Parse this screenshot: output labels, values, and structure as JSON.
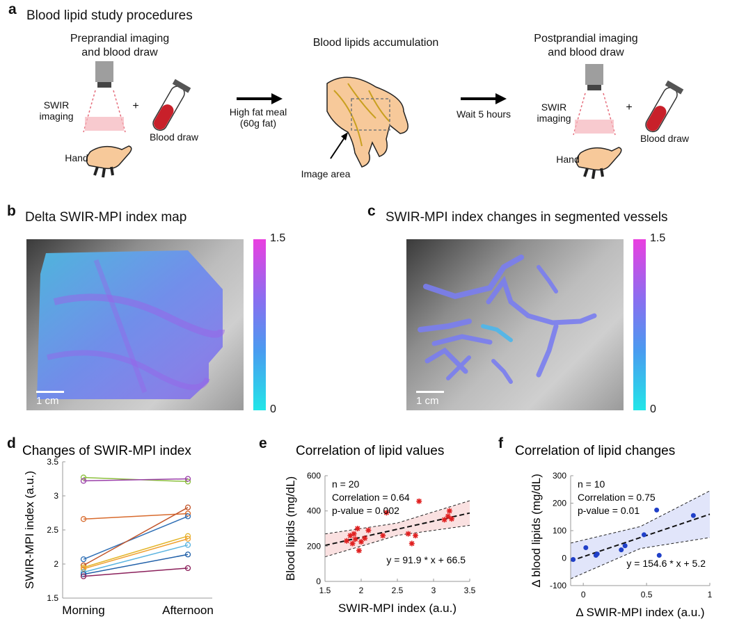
{
  "panel_a": {
    "label": "a",
    "title": "Blood lipid study procedures",
    "pre_title_line1": "Preprandial imaging",
    "pre_title_line2": "and blood draw",
    "swir_line1": "SWIR",
    "swir_line2": "imaging",
    "plus": "+",
    "blood_draw": "Blood draw",
    "hand": "Hand",
    "meal_line1": "High fat meal",
    "meal_line2": "(60g fat)",
    "accum_title": "Blood lipids accumulation",
    "image_area": "Image area",
    "wait": "Wait 5 hours",
    "post_title_line1": "Postprandial imaging",
    "post_title_line2": "and blood draw"
  },
  "panel_b": {
    "label": "b",
    "title": "Delta SWIR-MPI index map",
    "scale_bar": "1 cm",
    "cbar_max": "1.5",
    "cbar_min": "0"
  },
  "panel_c": {
    "label": "c",
    "title": "SWIR-MPI index changes in segmented vessels",
    "scale_bar": "1 cm",
    "cbar_max": "1.5",
    "cbar_min": "0"
  },
  "chart_data": [
    {
      "panel": "d",
      "type": "line",
      "title": "Changes of SWIR-MPI index",
      "xlabel": "",
      "ylabel": "SWIR-MPI index (a.u.)",
      "categories": [
        "Morning",
        "Afternoon"
      ],
      "ylim": [
        1.5,
        3.5
      ],
      "yticks": [
        "1.5",
        "2",
        "2.5",
        "3",
        "3.5"
      ],
      "series": [
        {
          "values": [
            3.27,
            3.21
          ],
          "color": "#8bbf3c"
        },
        {
          "values": [
            3.22,
            3.25
          ],
          "color": "#9a3fa8"
        },
        {
          "values": [
            2.66,
            2.74
          ],
          "color": "#d86a2c"
        },
        {
          "values": [
            2.07,
            2.7
          ],
          "color": "#2f6fb5"
        },
        {
          "values": [
            1.98,
            2.83
          ],
          "color": "#c2552a"
        },
        {
          "values": [
            1.95,
            2.41
          ],
          "color": "#e3b52a"
        },
        {
          "values": [
            1.93,
            2.37
          ],
          "color": "#f0a030"
        },
        {
          "values": [
            1.88,
            2.28
          ],
          "color": "#5ab4e0"
        },
        {
          "values": [
            1.85,
            2.14
          ],
          "color": "#1f5fa8"
        },
        {
          "values": [
            1.82,
            1.94
          ],
          "color": "#8a1f5a"
        }
      ]
    },
    {
      "panel": "e",
      "type": "scatter",
      "title": "Correlation of lipid values",
      "xlabel": "SWIR-MPI index (a.u.)",
      "ylabel": "Blood lipids (mg/dL)",
      "xlim": [
        1.5,
        3.5
      ],
      "ylim": [
        0,
        600
      ],
      "xticks": [
        "1.5",
        "2",
        "2.5",
        "3",
        "3.5"
      ],
      "yticks": [
        "0",
        "200",
        "400",
        "600"
      ],
      "annotations": [
        "n = 20",
        "Correlation = 0.64",
        "p-value = 0.002"
      ],
      "fit_label": "y = 91.9 * x + 66.5",
      "fit": {
        "slope": 91.9,
        "intercept": 66.5
      },
      "ci_half_width": [
        65,
        35,
        70
      ],
      "color": "#e02020",
      "points": [
        [
          1.8,
          230
        ],
        [
          1.85,
          260
        ],
        [
          1.88,
          215
        ],
        [
          1.9,
          270
        ],
        [
          1.92,
          240
        ],
        [
          1.95,
          300
        ],
        [
          1.97,
          175
        ],
        [
          2.0,
          225
        ],
        [
          2.05,
          245
        ],
        [
          2.1,
          290
        ],
        [
          2.3,
          260
        ],
        [
          2.35,
          390
        ],
        [
          2.65,
          270
        ],
        [
          2.7,
          215
        ],
        [
          2.75,
          260
        ],
        [
          2.8,
          455
        ],
        [
          3.15,
          350
        ],
        [
          3.2,
          370
        ],
        [
          3.22,
          400
        ],
        [
          3.25,
          355
        ]
      ]
    },
    {
      "panel": "f",
      "type": "scatter",
      "title": "Correlation of lipid changes",
      "xlabel": "Δ SWIR-MPI index (a.u.)",
      "ylabel": "Δ blood lipids (mg/dL)",
      "xlim": [
        -0.1,
        1.0
      ],
      "ylim": [
        -100,
        300
      ],
      "xticks": [
        "0",
        "0.5",
        "1"
      ],
      "xtick_values": [
        0,
        0.5,
        1
      ],
      "yticks": [
        "-100",
        "0",
        "100",
        "200",
        "300"
      ],
      "annotations": [
        "n = 10",
        "Correlation = 0.75",
        "p-value = 0.01"
      ],
      "fit_label": "y = 154.6 * x + 5.2",
      "fit": {
        "slope": 154.6,
        "intercept": 5.2
      },
      "ci_half_width": [
        65,
        40,
        85
      ],
      "color": "#2040c8",
      "points": [
        [
          -0.08,
          -5
        ],
        [
          0.02,
          38
        ],
        [
          0.1,
          10
        ],
        [
          0.11,
          15
        ],
        [
          0.3,
          30
        ],
        [
          0.33,
          45
        ],
        [
          0.48,
          85
        ],
        [
          0.58,
          175
        ],
        [
          0.6,
          10
        ],
        [
          0.87,
          155
        ]
      ]
    }
  ]
}
